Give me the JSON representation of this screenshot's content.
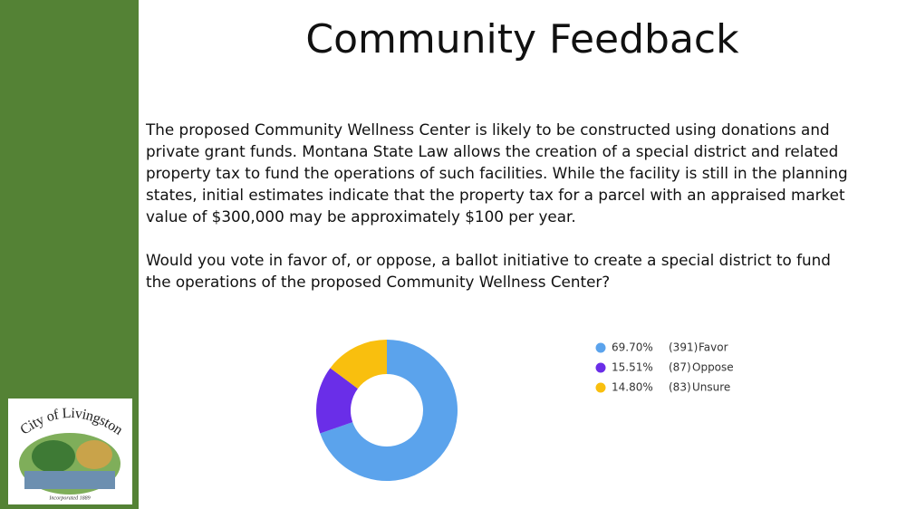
{
  "slide": {
    "title": "Community Feedback",
    "paragraphs": [
      [
        "The proposed Community Wellness Center is likely to be constructed using donations and",
        "private grant funds. Montana State Law allows the creation of a special district and related",
        "property tax to fund the operations of such facilities. While the facility is still in the planning",
        "states, initial estimates indicate that the property tax for a parcel with an appraised market",
        "value of $300,000 may be approximately $100 per year."
      ],
      [
        "Would you vote in favor of, or oppose, a ballot initiative to create a special district to fund",
        "the operations of the proposed Community Wellness Center?"
      ]
    ],
    "logo": {
      "name": "City of Livingston",
      "tagline": "Incorporated 1889"
    }
  },
  "chart_data": {
    "type": "donut",
    "categories": [
      "Favor",
      "Oppose",
      "Unsure"
    ],
    "values": [
      69.7,
      15.51,
      14.8
    ],
    "value_labels": [
      "69.70%",
      "15.51%",
      "14.80%"
    ],
    "counts": [
      391,
      87,
      83
    ],
    "count_labels": [
      "(391)",
      "(87)",
      "(83)"
    ],
    "colors": [
      "#5ba3ec",
      "#6a2ee8",
      "#f9bf0e"
    ],
    "legend": "right"
  }
}
